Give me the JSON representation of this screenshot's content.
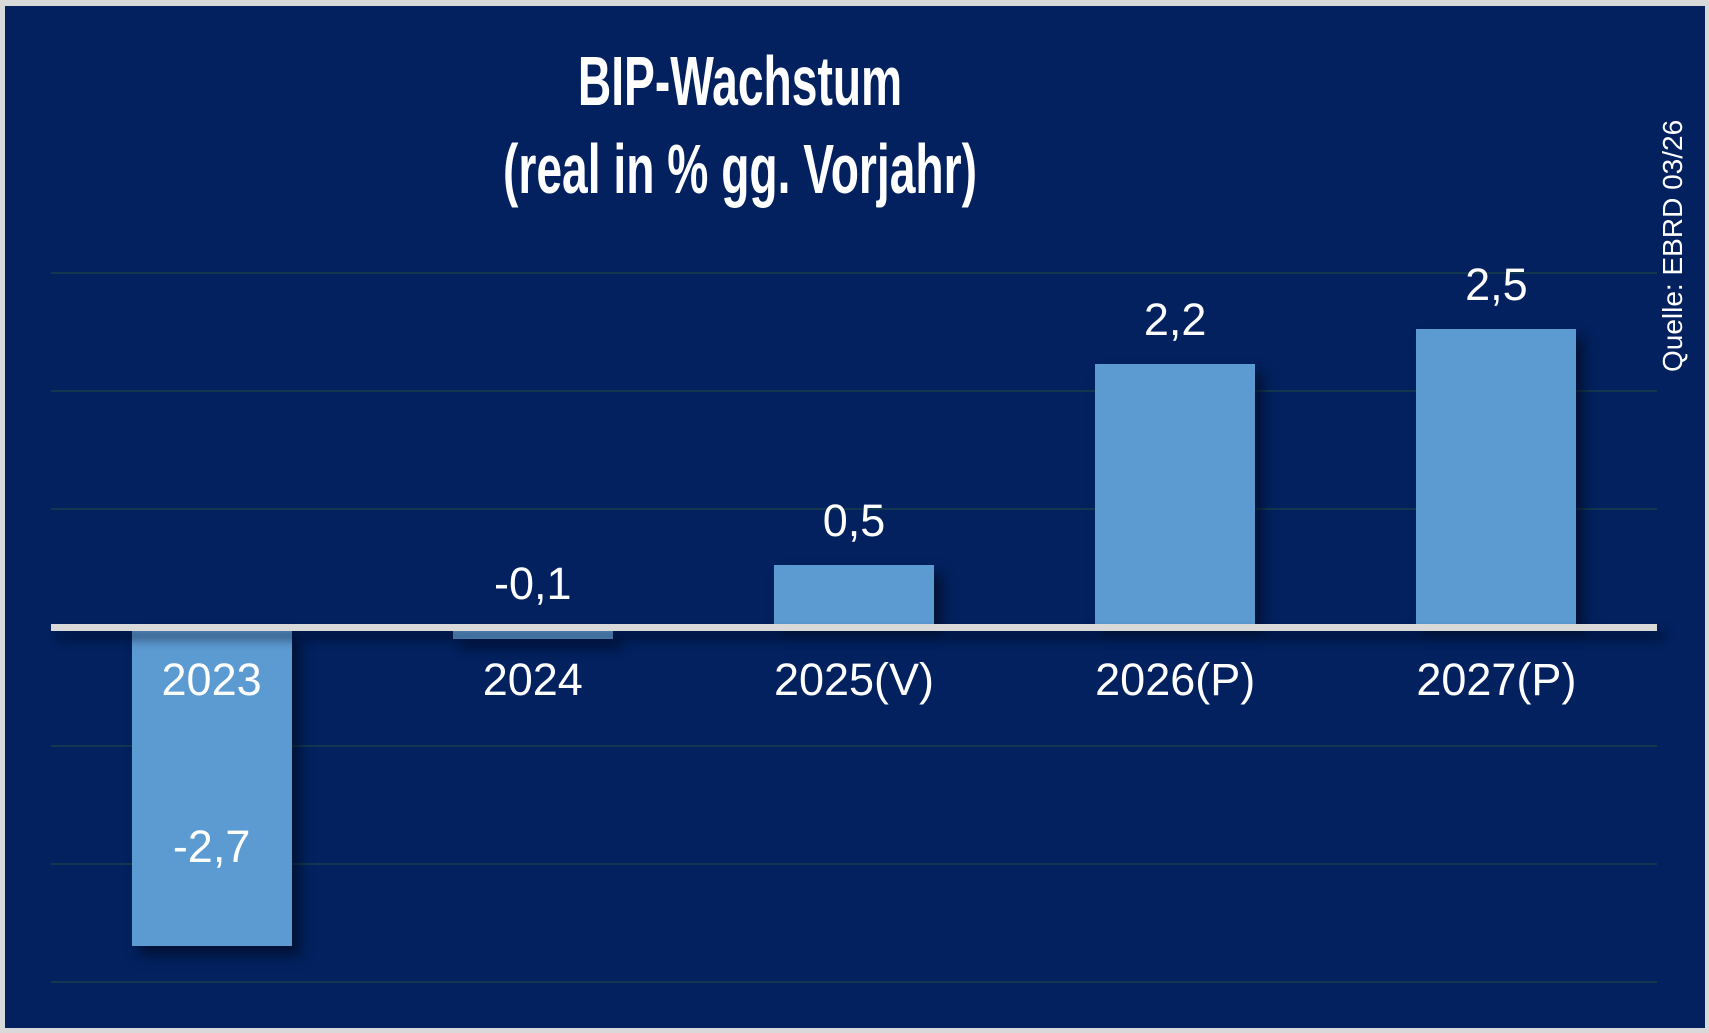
{
  "title": {
    "line1": "BIP-Wachstum",
    "line2": "(real in % gg. Vorjahr)"
  },
  "source": {
    "label": "Quelle: EBRD 03/26"
  },
  "colors": {
    "background": "#02215E",
    "frame": "#D9D9D9",
    "bar": "#5C9AD2",
    "axis_line": "#D9D9D9",
    "gridline": "#12384F",
    "text": "#FFFFFF"
  },
  "chart_data": {
    "type": "bar",
    "title": "BIP-Wachstum (real in % gg. Vorjahr)",
    "categories": [
      "2023",
      "2024",
      "2025(V)",
      "2026(P)",
      "2027(P)"
    ],
    "values": [
      -2.7,
      -0.1,
      0.5,
      2.2,
      2.5
    ],
    "value_labels": [
      "-2,7",
      "-0,1",
      "0,5",
      "2,2",
      "2,5"
    ],
    "series": [
      {
        "name": "BIP-Wachstum real in % gg. Vorjahr",
        "values": [
          -2.7,
          -0.1,
          0.5,
          2.2,
          2.5
        ]
      }
    ],
    "xlabel": "",
    "ylabel": "",
    "ylim": [
      -3.5,
      3.5
    ],
    "grid": true,
    "gridline_values": [
      3,
      2,
      1,
      -1,
      -2,
      -3
    ],
    "legend": false,
    "annotations": [
      "Quelle: EBRD 03/26"
    ]
  }
}
